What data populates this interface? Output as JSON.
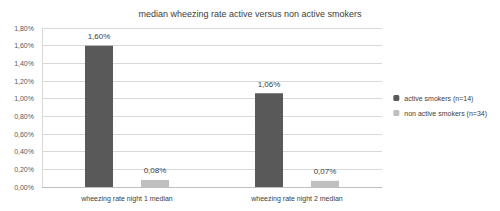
{
  "chart_data": {
    "type": "bar",
    "title": "median wheezing rate active versus non active smokers",
    "categories": [
      "wheezing rate night 1 median",
      "wheezing rate night 2 median"
    ],
    "series": [
      {
        "name": "active smokers (n=14)",
        "color": "#595959",
        "values": [
          1.6,
          1.06
        ],
        "value_labels": [
          "1,60%",
          "1,06%"
        ]
      },
      {
        "name": "non active smokers (n=34)",
        "color": "#bfbfbf",
        "values": [
          0.08,
          0.07
        ],
        "value_labels": [
          "0,08%",
          "0,07%"
        ]
      }
    ],
    "ylim": [
      0,
      1.8
    ],
    "yticks": [
      {
        "value": 0,
        "label": "0,00%"
      },
      {
        "value": 0.2,
        "label": "0,20%"
      },
      {
        "value": 0.4,
        "label": "0,40%"
      },
      {
        "value": 0.6,
        "label": "0,60%"
      },
      {
        "value": 0.8,
        "label": "0,80%"
      },
      {
        "value": 1.0,
        "label": "1,00%"
      },
      {
        "value": 1.2,
        "label": "1,20%"
      },
      {
        "value": 1.4,
        "label": "1,40%"
      },
      {
        "value": 1.6,
        "label": "1,60%"
      },
      {
        "value": 1.8,
        "label": "1,80%"
      }
    ],
    "grid": true,
    "legend": "right",
    "data_labels": true
  }
}
